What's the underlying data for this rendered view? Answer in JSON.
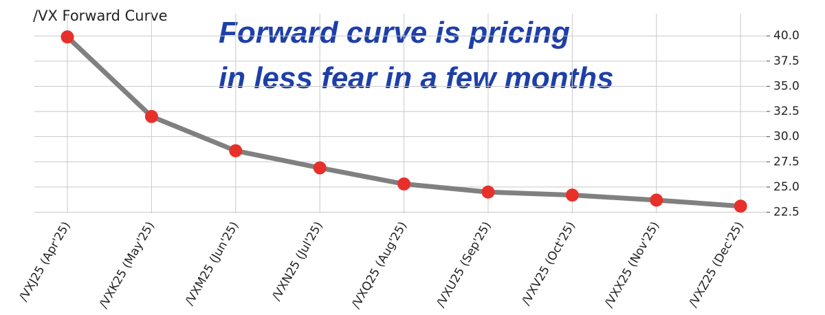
{
  "chart_data": {
    "type": "line",
    "title": "/VX Forward Curve",
    "annotation": [
      "Forward curve is pricing",
      "in less fear in a few months"
    ],
    "categories": [
      "/VXJ25 (Apr'25)",
      "/VXK25 (May'25)",
      "/VXM25 (Jun'25)",
      "/VXN25 (Jul'25)",
      "/VXQ25 (Aug'25)",
      "/VXU25 (Sep'25)",
      "/VXV25 (Oct'25)",
      "/VXX25 (Nov'25)",
      "/VXZ25 (Dec'25)"
    ],
    "values": [
      39.9,
      32.0,
      28.6,
      26.9,
      25.3,
      24.5,
      24.2,
      23.7,
      23.1
    ],
    "color": "#808080",
    "marker_color": "#e8302a",
    "ylim": [
      22.4,
      42.2
    ],
    "yticks": [
      {
        "value": 22.5,
        "label": "22.5"
      },
      {
        "value": 25,
        "label": "25.0"
      },
      {
        "value": 27.5,
        "label": "27.5"
      },
      {
        "value": 30,
        "label": "30.0"
      },
      {
        "value": 32.5,
        "label": "32.5"
      },
      {
        "value": 35,
        "label": "35.0"
      },
      {
        "value": 37.5,
        "label": "37.5"
      },
      {
        "value": 40,
        "label": "40.0"
      }
    ],
    "grid": true
  }
}
